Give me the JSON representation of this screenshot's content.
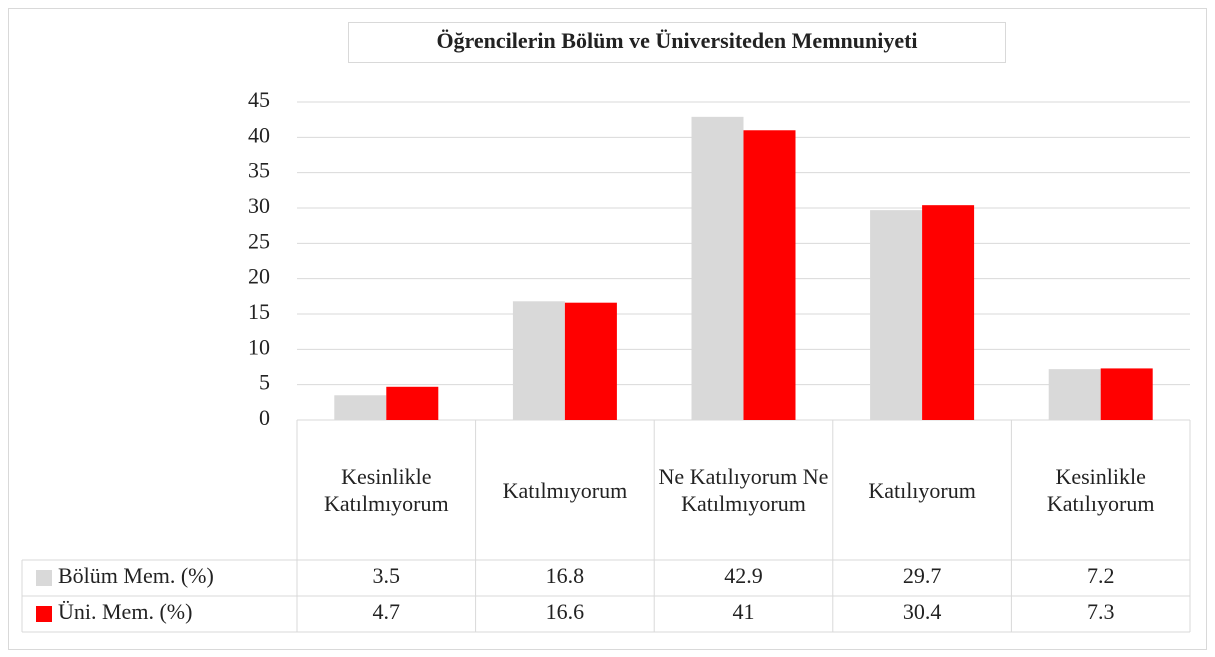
{
  "chart_data": {
    "type": "bar",
    "title": "Öğrencilerin Bölüm ve Üniversiteden Memnuniyeti",
    "categories": [
      "Kesinlikle Katılmıyorum",
      "Katılmıyorum",
      "Ne Katılıyorum Ne Katılmıyorum",
      "Katılıyorum",
      "Kesinlikle Katılıyorum"
    ],
    "series": [
      {
        "name": "Bölüm Mem. (%)",
        "color": "#d9d9d9",
        "values": [
          3.5,
          16.8,
          42.9,
          29.7,
          7.2
        ]
      },
      {
        "name": "Üni. Mem. (%)",
        "color": "#ff0000",
        "values": [
          4.7,
          16.6,
          41,
          30.4,
          7.3
        ]
      }
    ],
    "ylim": [
      0,
      45
    ],
    "yticks": [
      0,
      5,
      10,
      15,
      20,
      25,
      30,
      35,
      40,
      45
    ],
    "grid": true,
    "data_table": true
  }
}
